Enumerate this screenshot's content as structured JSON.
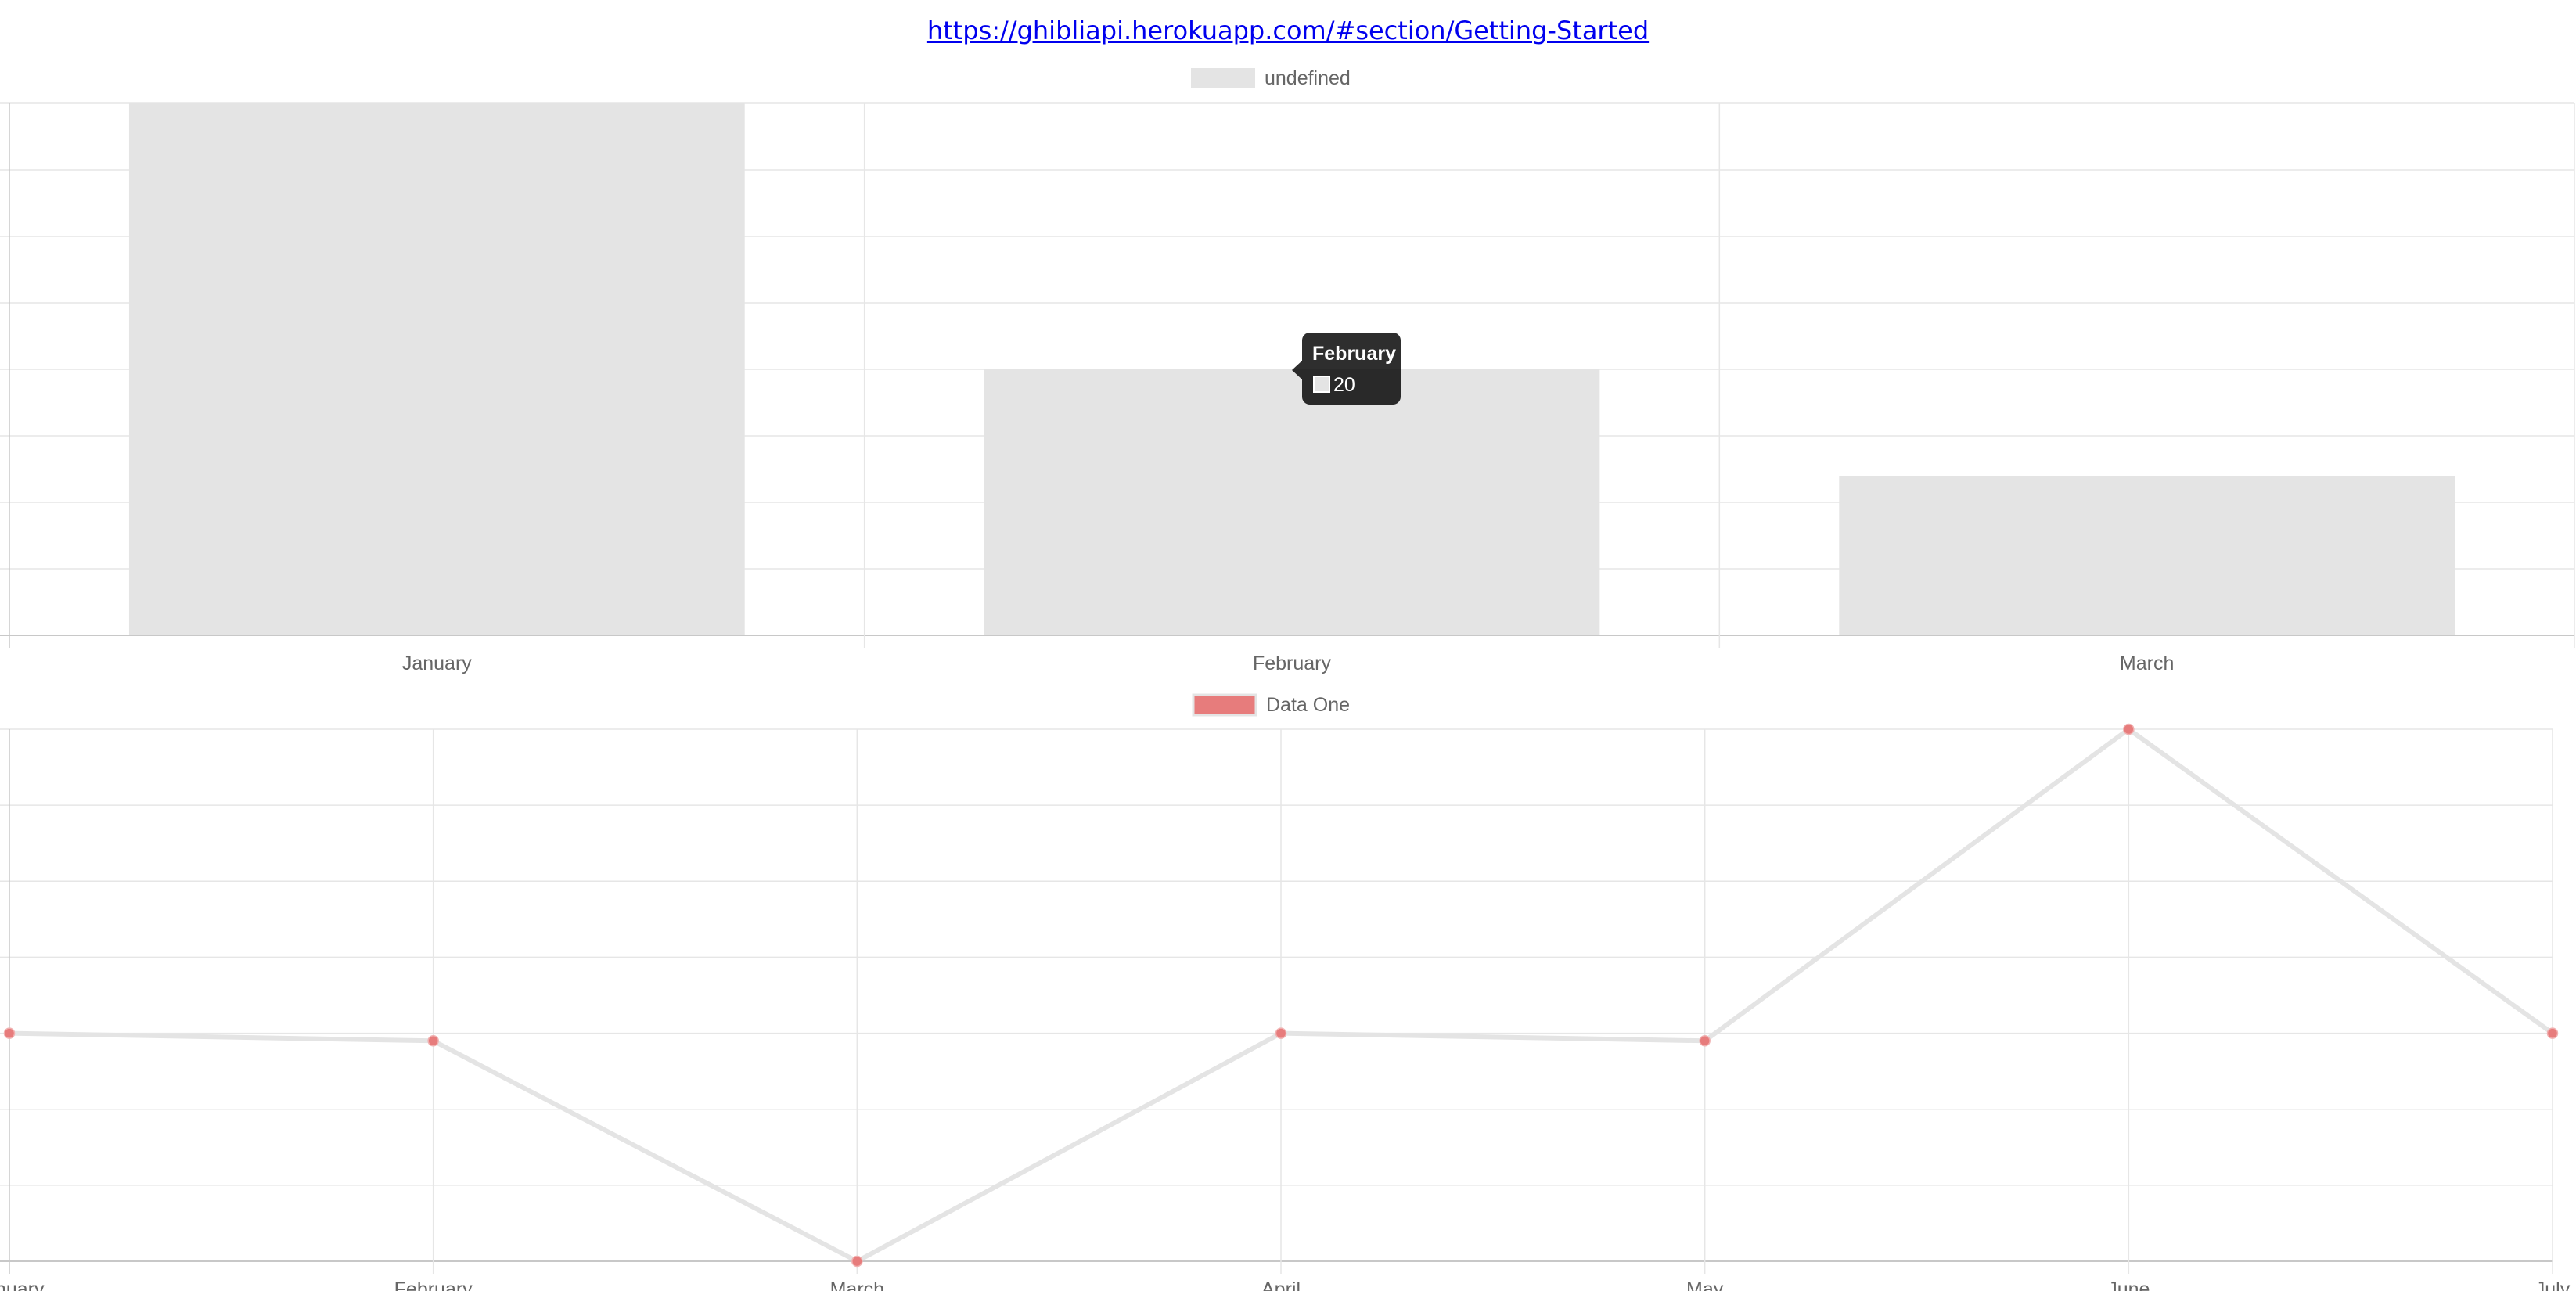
{
  "header": {
    "link_text": "https://ghibliapi.herokuapp.com/#section/Getting-Started"
  },
  "tooltip": {
    "title": "February",
    "value": "20"
  },
  "colors": {
    "bar_fill": "#e4e4e4",
    "line_stroke": "#e4e4e4",
    "point_fill": "#e77c7c",
    "grid": "#e6e6e6",
    "axis": "#c8c8c8",
    "tick_text": "#666666"
  },
  "chart_data": [
    {
      "type": "bar",
      "legend": [
        {
          "label": "undefined",
          "color": "#e4e4e4"
        }
      ],
      "categories": [
        "January",
        "February",
        "March"
      ],
      "series": [
        {
          "name": "undefined",
          "values": [
            40,
            20,
            12
          ]
        }
      ],
      "ylim": [
        0,
        40
      ],
      "y_step": 5,
      "grid": true,
      "legend_position": "top-center"
    },
    {
      "type": "line",
      "legend": [
        {
          "label": "Data One",
          "color": "#e77c7c"
        }
      ],
      "categories": [
        "January",
        "February",
        "March",
        "April",
        "May",
        "June",
        "July"
      ],
      "series": [
        {
          "name": "Data One",
          "values": [
            40,
            39,
            10,
            40,
            39,
            80,
            40
          ]
        }
      ],
      "ylim": [
        10,
        80
      ],
      "y_step": 10,
      "grid": true,
      "legend_position": "top-center"
    }
  ]
}
